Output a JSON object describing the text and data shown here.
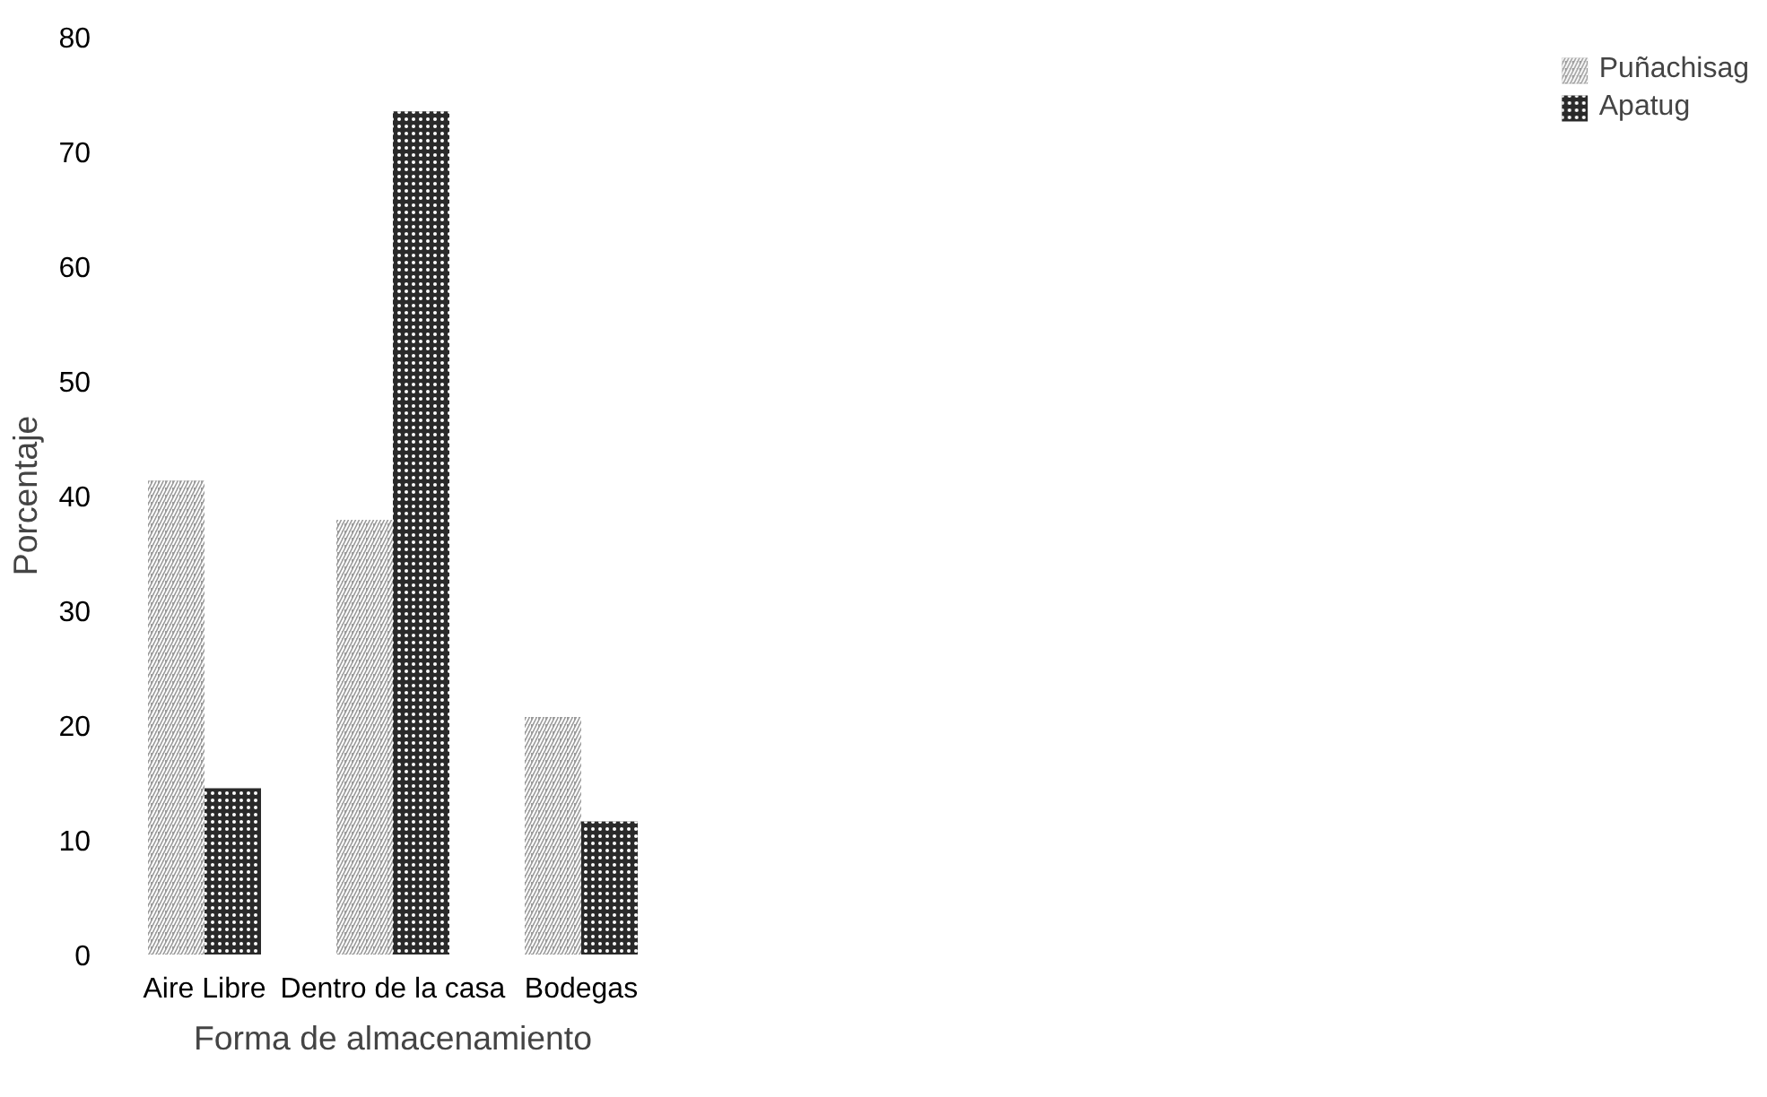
{
  "chart_data": {
    "type": "bar",
    "xlabel": "Forma de almacenamiento",
    "ylabel": "Porcentaje",
    "categories": [
      "Aire Libre",
      "Dentro de la casa",
      "Bodegas"
    ],
    "series": [
      {
        "name": "Puñachisag",
        "color": "#9a9a9a",
        "values": [
          41.3,
          37.9,
          20.7
        ]
      },
      {
        "name": "Apatug",
        "color": "#2a2a2a",
        "values": [
          14.5,
          73.5,
          11.6
        ]
      }
    ],
    "ylim": [
      0,
      80
    ],
    "yticks": [
      0,
      10,
      20,
      30,
      40,
      50,
      60,
      70,
      80
    ],
    "grid": false,
    "legend": "right"
  }
}
